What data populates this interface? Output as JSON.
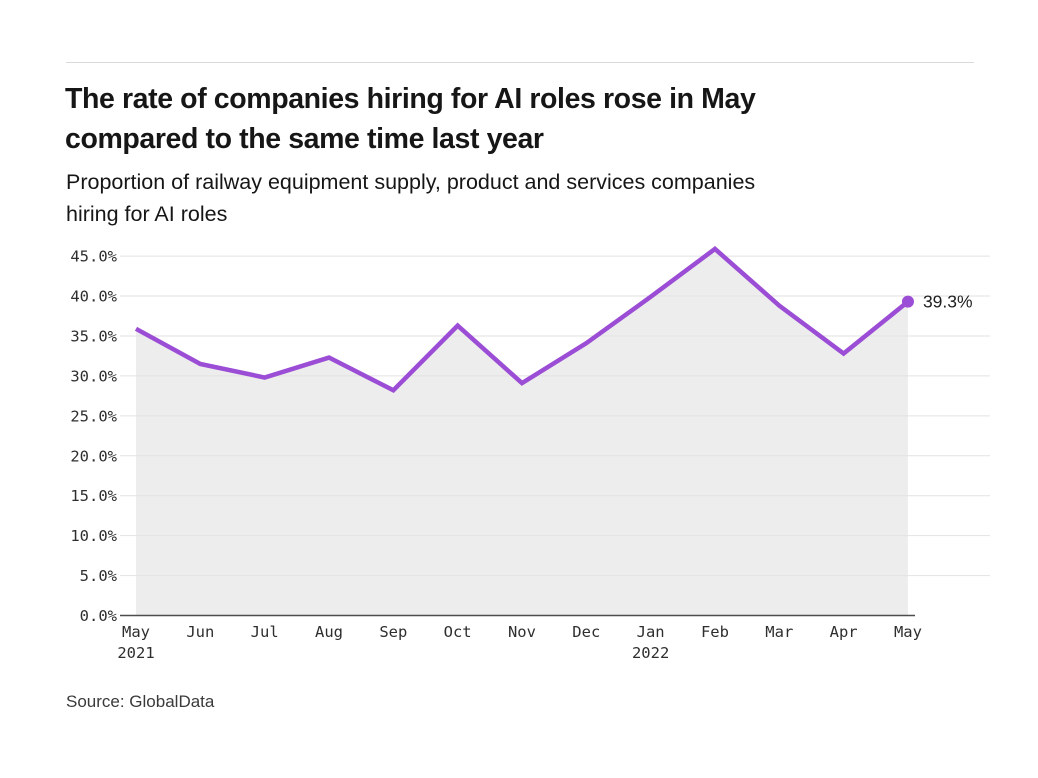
{
  "page": {
    "title": "The rate of companies hiring for AI roles rose in May\ncompared to the same time last year",
    "subtitle": "Proportion of railway equipment supply, product and services companies\nhiring for AI roles",
    "source": "Source: GlobalData"
  },
  "chart_data": {
    "type": "line",
    "title": "The rate of companies hiring for AI roles rose in May compared to the same time last year",
    "subtitle": "Proportion of railway equipment supply, product and services companies hiring for AI roles",
    "categories": [
      "May 2021",
      "Jun",
      "Jul",
      "Aug",
      "Sep",
      "Oct",
      "Nov",
      "Dec",
      "Jan 2022",
      "Feb",
      "Mar",
      "Apr",
      "May"
    ],
    "month_labels": [
      "May",
      "Jun",
      "Jul",
      "Aug",
      "Sep",
      "Oct",
      "Nov",
      "Dec",
      "Jan",
      "Feb",
      "Mar",
      "Apr",
      "May"
    ],
    "year_labels": [
      {
        "index": 0,
        "label": "2021"
      },
      {
        "index": 8,
        "label": "2022"
      }
    ],
    "values": [
      35.9,
      31.5,
      29.8,
      32.3,
      28.2,
      36.3,
      29.1,
      34.1,
      39.9,
      45.9,
      38.8,
      32.8,
      39.3
    ],
    "end_label": "39.3%",
    "y_ticks": [
      0,
      5,
      10,
      15,
      20,
      25,
      30,
      35,
      40,
      45
    ],
    "y_tick_suffix": "%",
    "ylim": [
      0,
      45
    ],
    "grid": true,
    "legend": "none",
    "line_color": "#9b4dd5",
    "fill_color": "#ededed",
    "grid_color": "#e2e2e2",
    "axis_color": "#4d4d4d",
    "tick_text_color": "#2e2e2e",
    "end_label_color": "#1f1f1f",
    "source": "Source: GlobalData"
  }
}
